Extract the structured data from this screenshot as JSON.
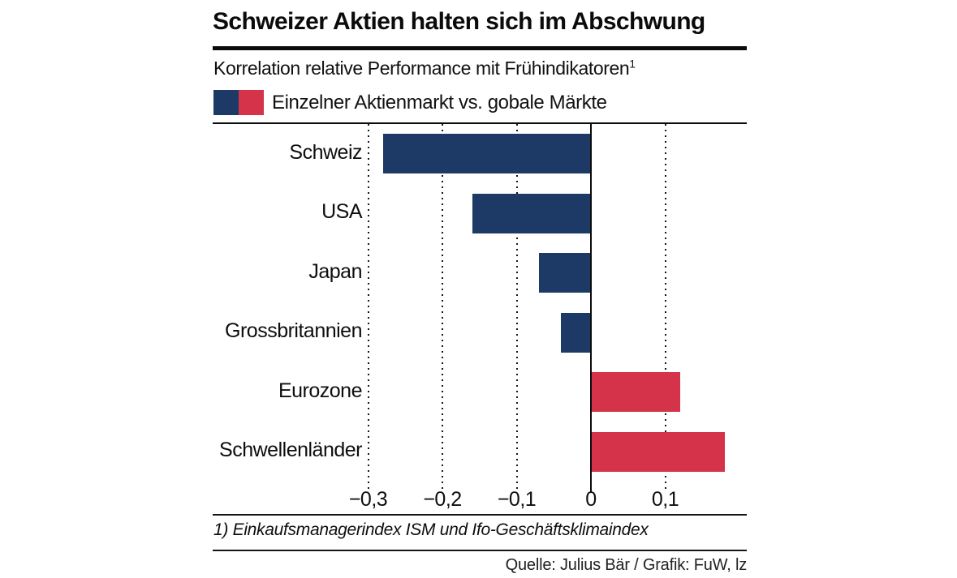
{
  "chart_data": {
    "type": "bar",
    "orientation": "horizontal",
    "title": "Schweizer Aktien halten sich im Abschwung",
    "subtitle": "Korrelation relative Performance mit Frühindikatoren",
    "subtitle_footnote_marker": "1",
    "legend": {
      "label": "Einzelner Aktienmarkt vs. gobale Märkte",
      "position": "top-left",
      "negative_color": "#1d3a66",
      "positive_color": "#d53349"
    },
    "categories": [
      "Schweiz",
      "USA",
      "Japan",
      "Grossbritannien",
      "Eurozone",
      "Schwellenländer"
    ],
    "values": [
      -0.28,
      -0.16,
      -0.07,
      -0.04,
      0.12,
      0.18
    ],
    "bar_colors": [
      "#1d3a66",
      "#1d3a66",
      "#1d3a66",
      "#1d3a66",
      "#d53349",
      "#d53349"
    ],
    "x_ticks": [
      -0.3,
      -0.2,
      -0.1,
      0,
      0.1
    ],
    "x_tick_labels": [
      "−0,3",
      "−0,2",
      "−0,1",
      "0",
      "0,1"
    ],
    "xlim": [
      -0.51,
      0.21
    ],
    "grid": "vertical-dotted",
    "zero_line": true,
    "xlabel": "",
    "ylabel": "",
    "footnote": "1) Einkaufsmanagerindex ISM und Ifo-Geschäftsklimaindex",
    "source": "Quelle: Julius Bär / Grafik: FuW, lz"
  }
}
